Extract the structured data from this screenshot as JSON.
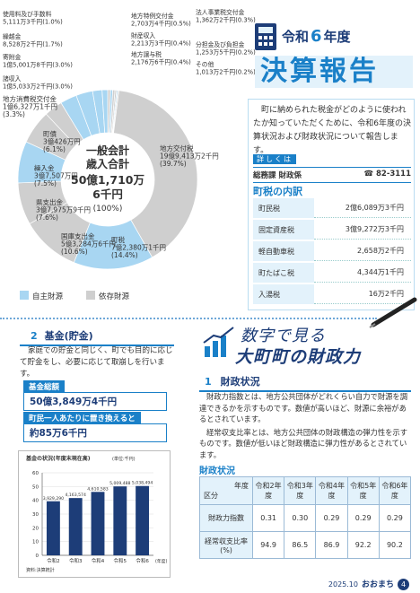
{
  "chart_data": [
    {
      "type": "pie",
      "center_label": [
        "一般会計",
        "歳入合計",
        "50億1,710万",
        "6千円",
        "(100%)"
      ],
      "categories": [
        "地方特例交付金",
        "財産収入",
        "地方譲与税",
        "法人事業税交付金",
        "分担金及び負担金",
        "その他",
        "地方交付税",
        "町税",
        "国庫支出金",
        "県支出金",
        "繰入金",
        "町債",
        "地方消費税交付金",
        "諸収入",
        "寄附金",
        "繰越金",
        "使用料及び手数料"
      ],
      "amounts": [
        "2,703万4千円",
        "2,213万3千円",
        "2,176万6千円",
        "1,362万2千円",
        "1,253万5千円",
        "1,013万2千円",
        "19億9,413万2千円",
        "7億2,380万1千円",
        "5億3,284万6千円",
        "3億7,975万9千円",
        "3億7,507万円",
        "3億426万円",
        "1億6,327万1千円",
        "1億5,033万2千円",
        "1億5,001万8千円",
        "8,528万2千円",
        "5,111万3千円"
      ],
      "values": [
        0.5,
        0.4,
        0.4,
        0.3,
        0.2,
        0.2,
        39.7,
        14.4,
        10.6,
        7.6,
        7.5,
        6.1,
        3.3,
        3.0,
        3.0,
        1.7,
        1.0
      ],
      "value_labels": [
        "(0.5%)",
        "(0.4%)",
        "(0.4%)",
        "(0.3%)",
        "(0.2%)",
        "(0.2%)",
        "(39.7%)",
        "(14.4%)",
        "(10.6%)",
        "(7.6%)",
        "(7.5%)",
        "(6.1%)",
        "(3.3%)",
        "(3.0%)",
        "(3.0%)",
        "(1.7%)",
        "(1.0%)"
      ],
      "colors": [
        "#cfcfcf",
        "#a8d6f2",
        "#cfcfcf",
        "#cfcfcf",
        "#a8d6f2",
        "#cfcfcf",
        "#cfcfcf",
        "#a8d6f2",
        "#cfcfcf",
        "#cfcfcf",
        "#a8d6f2",
        "#cfcfcf",
        "#cfcfcf",
        "#a8d6f2",
        "#a8d6f2",
        "#a8d6f2",
        "#a8d6f2"
      ],
      "legend": [
        {
          "name": "自主財源",
          "color": "#a8d6f2"
        },
        {
          "name": "依存財源",
          "color": "#cfcfcf"
        }
      ]
    },
    {
      "type": "bar",
      "title": "基金の状況(年度末現在高)",
      "unit_label": "(単位:千円)",
      "categories": [
        "令和2",
        "令和3",
        "令和4",
        "令和5",
        "令和6"
      ],
      "values": [
        39.2929,
        41.63574,
        46.10583,
        50.09488,
        50.38494
      ],
      "value_labels": [
        "3,929,290",
        "4,163,574",
        "4,610,583",
        "5,009,488",
        "5,038,494"
      ],
      "color": "#1d3d78",
      "ylim": [
        0,
        60
      ],
      "yticks": [
        0,
        10,
        20,
        30,
        40,
        50,
        60
      ],
      "grid": true,
      "x_label": "(年度)",
      "source": "資料:決算統計"
    }
  ],
  "header": {
    "era": "令和",
    "year": "6",
    "nendo": "年度",
    "title": "決算報告"
  },
  "intro": "町に納められた税金がどのように使われたか知っていただくために、令和6年度の決算状況および財政状況について報告します。",
  "contact": {
    "label": "詳しくは",
    "dept": "総務課 財政係",
    "phone": "☎ 82-3111"
  },
  "tax_breakdown": {
    "title": "町税の内訳",
    "rows": [
      [
        "町民税",
        "2億6,089万3千円"
      ],
      [
        "固定資産税",
        "3億9,272万3千円"
      ],
      [
        "軽自動車税",
        "2,658万2千円"
      ],
      [
        "町たばこ税",
        "4,344万1千円"
      ],
      [
        "入湯税",
        "16万2千円"
      ]
    ]
  },
  "fund": {
    "number": "2",
    "title": "基金(貯金)",
    "text": "家庭での貯金と同じく、町でも目的に応じて貯金をし、必要に応じて取崩しを行います。",
    "total_label": "基金総額",
    "total": "50億3,849万4千円",
    "per_capita_label": "町民一人あたりに置き換えると",
    "per_capita": "約85万6千円"
  },
  "feature": {
    "line1": "数字で見る",
    "line2": "大町町の財政力"
  },
  "finance": {
    "number": "1",
    "title": "財政状況",
    "paragraphs": [
      "財政力指数とは、地方公共団体がどれくらい自力で財源を調達できるかを示すものです。数値が高いほど、財源に余裕があるとされています。",
      "経常収支比率とは、地方公共団体の財政構造の弾力性を示すものです。数値が低いほど財政構造に弾力性があるとされています。"
    ],
    "table": {
      "title": "財政状況",
      "corner_top": "年度",
      "corner_bottom": "区分",
      "columns": [
        "令和2年度",
        "令和3年度",
        "令和4年度",
        "令和5年度",
        "令和6年度"
      ],
      "rows": [
        {
          "name": "財政力指数",
          "values": [
            "0.31",
            "0.30",
            "0.29",
            "0.29",
            "0.29"
          ]
        },
        {
          "name": "経常収支比率(%)",
          "values": [
            "94.9",
            "86.5",
            "86.9",
            "92.2",
            "90.2"
          ]
        }
      ]
    }
  },
  "footer": {
    "date": "2025.10",
    "name": "おおまち",
    "page": "4"
  }
}
